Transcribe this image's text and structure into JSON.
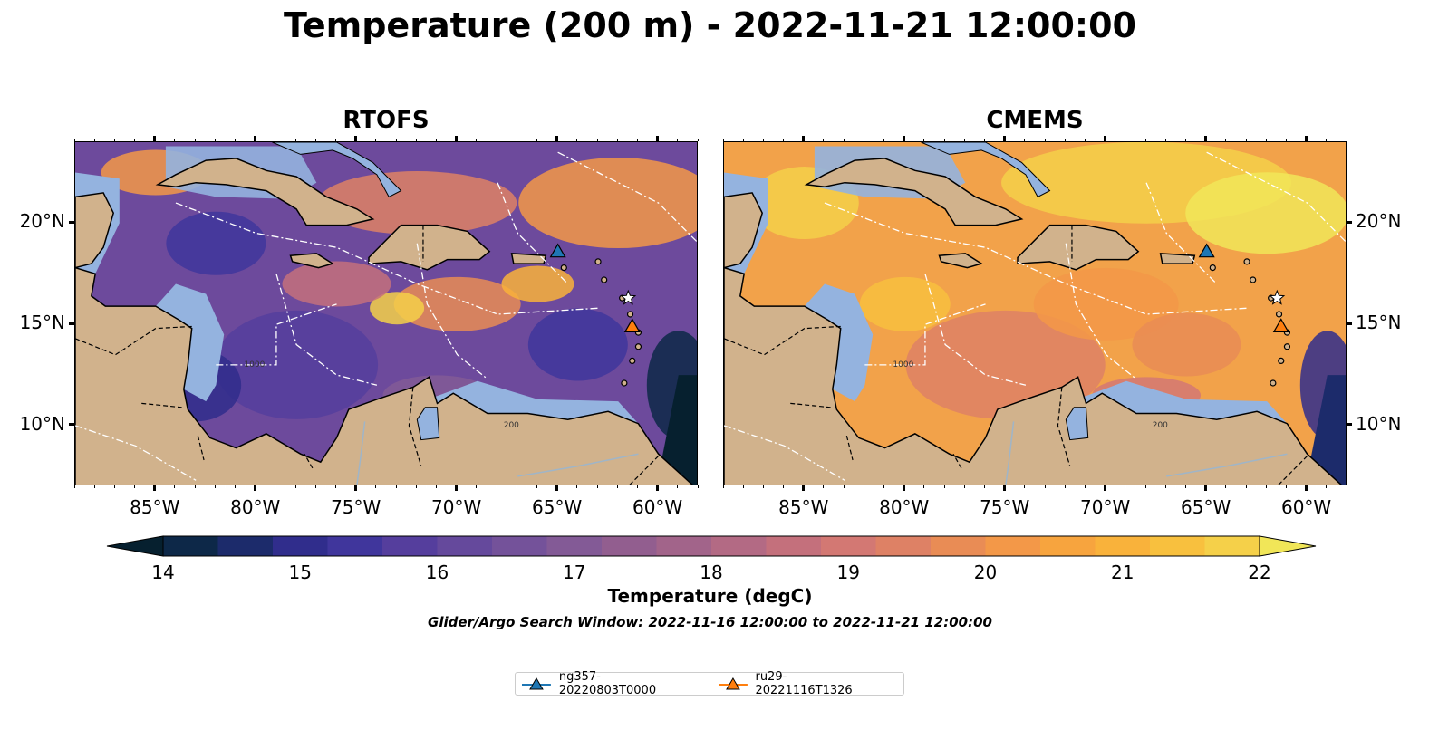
{
  "title": "Temperature (200 m) - 2022-11-21 12:00:00",
  "panels": [
    {
      "title": "RTOFS",
      "theme": "cool"
    },
    {
      "title": "CMEMS",
      "theme": "warm"
    }
  ],
  "lon_ticks": [
    "85°W",
    "80°W",
    "75°W",
    "70°W",
    "65°W",
    "60°W"
  ],
  "lat_ticks": [
    "20°N",
    "15°N",
    "10°N"
  ],
  "map_extent": {
    "lon": [
      -89,
      -58
    ],
    "lat": [
      7,
      24
    ]
  },
  "colorbar": {
    "ticks": [
      "14",
      "15",
      "16",
      "17",
      "18",
      "19",
      "20",
      "21",
      "22"
    ],
    "label": "Temperature (degC)",
    "colors": [
      "#06202f",
      "#0d2848",
      "#1c2b6b",
      "#302d8c",
      "#40369c",
      "#553e9d",
      "#65499c",
      "#74529a",
      "#835a96",
      "#925e8f",
      "#a2648a",
      "#b36a84",
      "#c4707c",
      "#d37873",
      "#de8165",
      "#e98c55",
      "#f39848",
      "#f7a43e",
      "#f9b23b",
      "#f8c03e",
      "#f5d049",
      "#f1e658"
    ]
  },
  "contour_labels": [
    "1000",
    "200"
  ],
  "search_window": "Glider/Argo Search Window: 2022-11-16 12:00:00 to 2022-11-21 12:00:00",
  "legend": [
    {
      "label": "ng357-20220803T0000",
      "color": "#1f77b4"
    },
    {
      "label": "ru29-20221116T1326",
      "color": "#ff7f0e"
    }
  ],
  "markers": [
    {
      "name": "ng357",
      "lon": -65.0,
      "lat": 18.6,
      "shape": "triangle",
      "color": "#1f77b4"
    },
    {
      "name": "ru29",
      "lon": -61.3,
      "lat": 14.9,
      "shape": "triangle",
      "color": "#ff7f0e"
    },
    {
      "name": "ru29-start",
      "lon": -61.5,
      "lat": 16.3,
      "shape": "star",
      "color": "#ffffff"
    }
  ]
}
